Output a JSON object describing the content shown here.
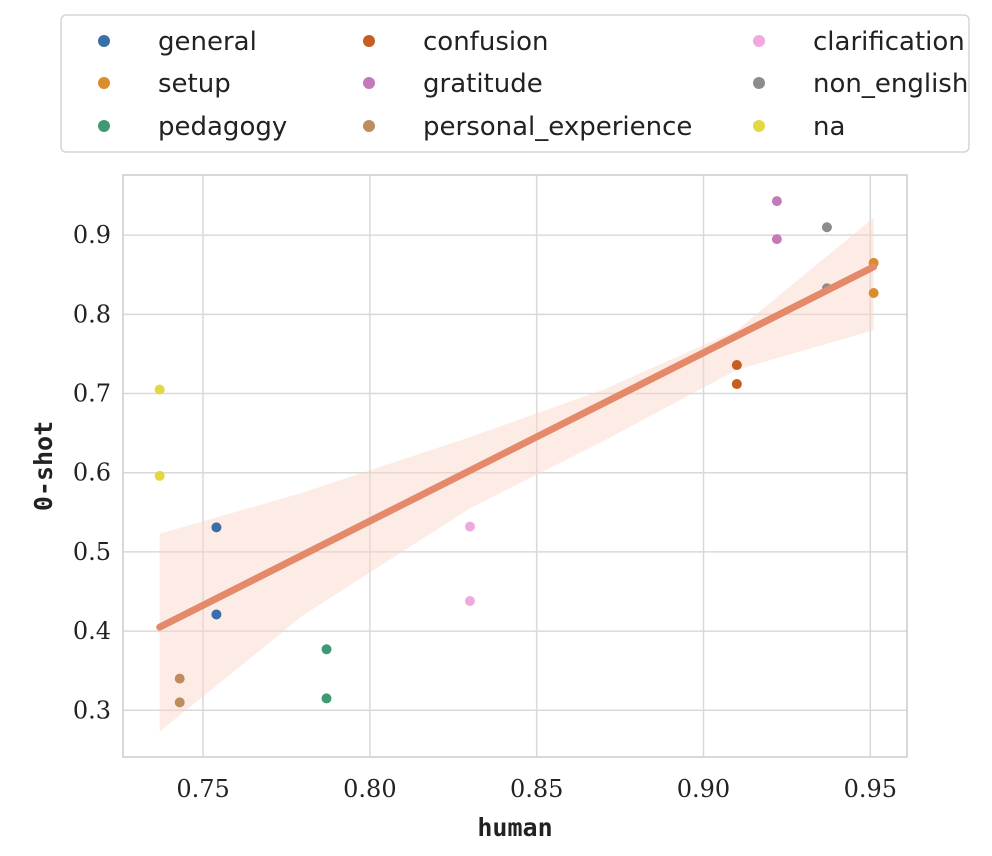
{
  "chart_data": {
    "type": "scatter",
    "title": "",
    "xlabel": "human",
    "ylabel": "0-shot",
    "xlim": [
      0.726,
      0.961
    ],
    "ylim": [
      0.241,
      0.976
    ],
    "x_ticks": [
      0.75,
      0.8,
      0.85,
      0.9,
      0.95
    ],
    "y_ticks": [
      0.3,
      0.4,
      0.5,
      0.6,
      0.7,
      0.8,
      0.9
    ],
    "x_tick_labels": [
      "0.75",
      "0.80",
      "0.85",
      "0.90",
      "0.95"
    ],
    "y_tick_labels": [
      "0.3",
      "0.4",
      "0.5",
      "0.6",
      "0.7",
      "0.8",
      "0.9"
    ],
    "grid": true,
    "legend_position": "top",
    "series": [
      {
        "name": "general",
        "color": "#3a6fa8",
        "points": [
          [
            0.754,
            0.531
          ],
          [
            0.754,
            0.421
          ]
        ]
      },
      {
        "name": "setup",
        "color": "#db8c2c",
        "points": [
          [
            0.951,
            0.865
          ],
          [
            0.951,
            0.827
          ]
        ]
      },
      {
        "name": "pedagogy",
        "color": "#3f9a74",
        "points": [
          [
            0.787,
            0.377
          ],
          [
            0.787,
            0.315
          ]
        ]
      },
      {
        "name": "confusion",
        "color": "#c65d23",
        "points": [
          [
            0.91,
            0.736
          ],
          [
            0.91,
            0.712
          ]
        ]
      },
      {
        "name": "gratitude",
        "color": "#c27abb",
        "points": [
          [
            0.922,
            0.943
          ],
          [
            0.922,
            0.895
          ]
        ]
      },
      {
        "name": "personal_experience",
        "color": "#c08b5f",
        "points": [
          [
            0.743,
            0.34
          ],
          [
            0.743,
            0.31
          ]
        ]
      },
      {
        "name": "clarification",
        "color": "#f0a9de",
        "points": [
          [
            0.83,
            0.532
          ],
          [
            0.83,
            0.438
          ]
        ]
      },
      {
        "name": "non_english",
        "color": "#8c8c8c",
        "points": [
          [
            0.937,
            0.91
          ],
          [
            0.937,
            0.833
          ]
        ]
      },
      {
        "name": "na",
        "color": "#e3d841",
        "points": [
          [
            0.737,
            0.705
          ],
          [
            0.737,
            0.596
          ]
        ]
      }
    ],
    "regression": {
      "color": "#e48a6b",
      "band_color": "#f8d5c5",
      "line": [
        [
          0.737,
          0.405
        ],
        [
          0.951,
          0.86
        ]
      ],
      "band_upper": [
        [
          0.737,
          0.523
        ],
        [
          0.78,
          0.575
        ],
        [
          0.83,
          0.645
        ],
        [
          0.87,
          0.705
        ],
        [
          0.91,
          0.78
        ],
        [
          0.951,
          0.922
        ]
      ],
      "band_lower": [
        [
          0.737,
          0.273
        ],
        [
          0.78,
          0.42
        ],
        [
          0.83,
          0.555
        ],
        [
          0.87,
          0.64
        ],
        [
          0.91,
          0.73
        ],
        [
          0.951,
          0.78
        ]
      ]
    }
  }
}
